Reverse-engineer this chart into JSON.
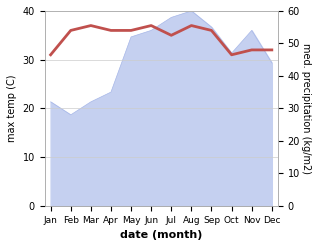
{
  "months": [
    "Jan",
    "Feb",
    "Mar",
    "Apr",
    "May",
    "Jun",
    "Jul",
    "Aug",
    "Sep",
    "Oct",
    "Nov",
    "Dec"
  ],
  "temperature": [
    31,
    36,
    37,
    36,
    36,
    37,
    35,
    37,
    36,
    31,
    32,
    32
  ],
  "precipitation": [
    32,
    28,
    32,
    35,
    52,
    54,
    58,
    60,
    55,
    47,
    54,
    44
  ],
  "temp_color": "#c0504d",
  "precip_fill_color": "#c5d0f0",
  "precip_line_color": "#a8b8e8",
  "temp_ylim": [
    0,
    40
  ],
  "precip_ylim": [
    0,
    60
  ],
  "temp_yticks": [
    0,
    10,
    20,
    30,
    40
  ],
  "precip_yticks": [
    0,
    10,
    20,
    30,
    40,
    50,
    60
  ],
  "xlabel": "date (month)",
  "ylabel_left": "max temp (C)",
  "ylabel_right": "med. precipitation (kg/m2)",
  "temp_linewidth": 2.0,
  "background_color": "#ffffff"
}
